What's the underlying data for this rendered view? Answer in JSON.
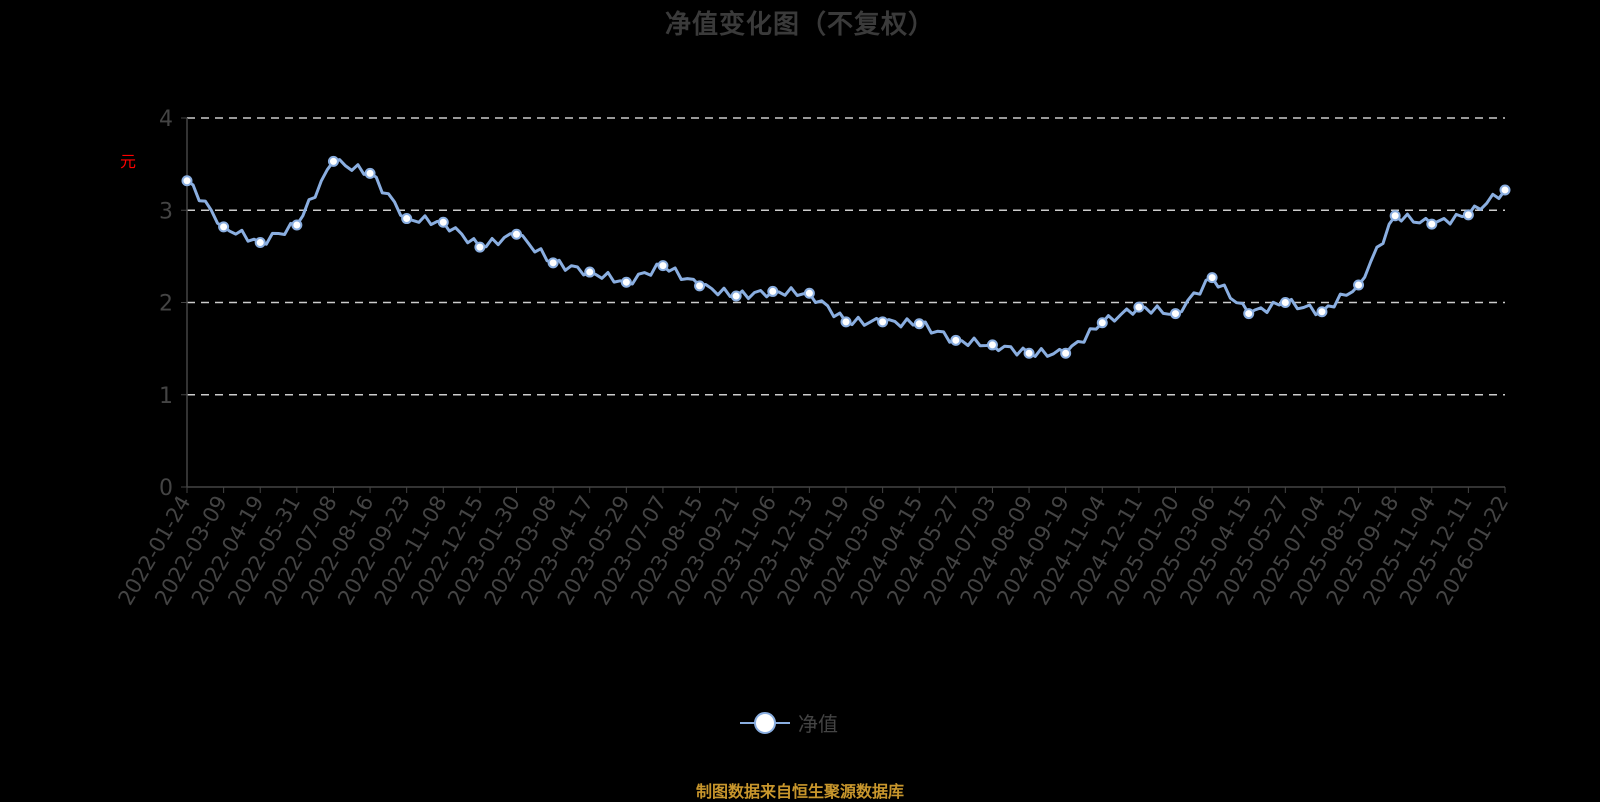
{
  "chart_data": {
    "type": "line",
    "title": "净值变化图（不复权）",
    "xlabel": "",
    "ylabel": "元",
    "ylim": [
      0,
      4
    ],
    "yticks": [
      0,
      1,
      2,
      3,
      4
    ],
    "grid": true,
    "legend_position": "bottom",
    "categories": [
      "2022-01-24",
      "2022-03-09",
      "2022-04-19",
      "2022-05-31",
      "2022-07-08",
      "2022-08-16",
      "2022-09-23",
      "2022-11-08",
      "2022-12-15",
      "2023-01-30",
      "2023-03-08",
      "2023-04-17",
      "2023-05-29",
      "2023-07-07",
      "2023-08-15",
      "2023-09-21",
      "2023-11-06",
      "2023-12-13",
      "2024-01-19",
      "2024-03-06",
      "2024-04-15",
      "2024-05-27",
      "2024-07-03",
      "2024-08-09",
      "2024-09-19",
      "2024-11-04",
      "2024-12-11",
      "2025-01-20",
      "2025-03-06",
      "2025-04-15",
      "2025-05-27",
      "2025-07-04",
      "2025-08-12",
      "2025-09-18",
      "2025-11-04",
      "2025-12-11",
      "2026-01-22"
    ],
    "series": [
      {
        "name": "净值",
        "color": "#8aaee0",
        "values": [
          3.32,
          2.82,
          2.65,
          2.84,
          3.53,
          3.4,
          2.91,
          2.87,
          2.6,
          2.74,
          2.43,
          2.33,
          2.22,
          2.4,
          2.18,
          2.07,
          2.12,
          2.1,
          1.79,
          1.79,
          1.77,
          1.59,
          1.54,
          1.45,
          1.45,
          1.78,
          1.95,
          1.88,
          2.27,
          1.88,
          2.0,
          1.9,
          2.19,
          2.94,
          2.85,
          2.95,
          3.22
        ]
      }
    ]
  },
  "header": {
    "title": "净值变化图（不复权）"
  },
  "axis": {
    "unit_label": "元"
  },
  "legend": {
    "label": "净值"
  },
  "footer": {
    "source": "制图数据来自恒生聚源数据库"
  },
  "colors": {
    "line": "#8aaee0",
    "marker_fill": "#ffffff",
    "grid": "#cccccc",
    "axis": "#444444",
    "title": "#3a3a3a",
    "source": "#c8962c",
    "unit": "#ff0000"
  }
}
